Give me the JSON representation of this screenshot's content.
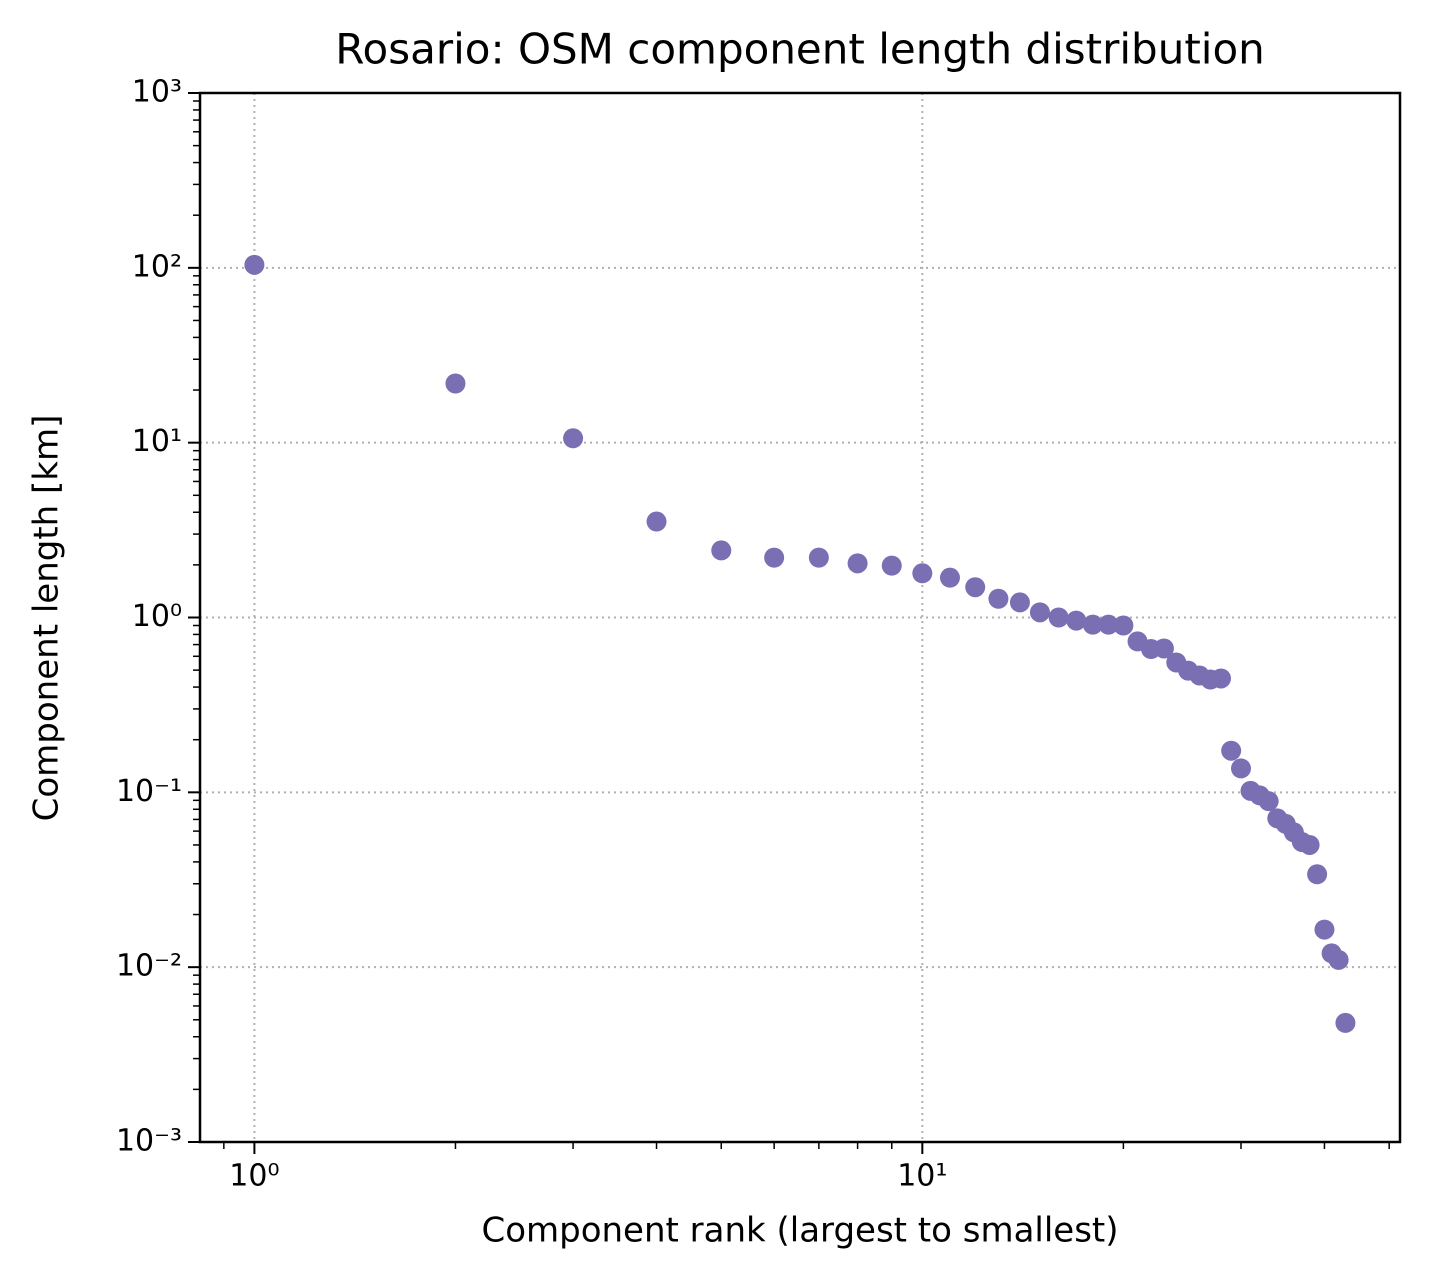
{
  "chart_data": {
    "type": "scatter",
    "title": "Rosario: OSM component length distribution",
    "x_label": "Component rank (largest to smallest)",
    "y_label": "Component length [km]",
    "x_scale": "log",
    "y_scale": "log",
    "grid": true,
    "series": [
      {
        "color": "#7b6fb4",
        "x": [
          1,
          2,
          3,
          4,
          5,
          6,
          7,
          8,
          9,
          10,
          11,
          12,
          13,
          14,
          15,
          16,
          17,
          18,
          19,
          20,
          21,
          22,
          23,
          24,
          25,
          26,
          27,
          28,
          29,
          30,
          31,
          32,
          33,
          34,
          35,
          36,
          37,
          38,
          39,
          40,
          41,
          42,
          43
        ],
        "values": [
          104,
          21.8,
          10.6,
          3.54,
          2.42,
          2.2,
          2.2,
          2.04,
          1.98,
          1.79,
          1.69,
          1.49,
          1.28,
          1.22,
          1.07,
          1.0,
          0.96,
          0.91,
          0.91,
          0.9,
          0.73,
          0.66,
          0.665,
          0.553,
          0.497,
          0.466,
          0.442,
          0.448,
          0.173,
          0.137,
          0.102,
          0.096,
          0.089,
          0.071,
          0.066,
          0.059,
          0.052,
          0.05,
          0.034,
          0.0164,
          0.012,
          0.011,
          0.0048
        ]
      }
    ],
    "xlim": [
      0.829,
      51.9
    ],
    "ylim": [
      0.001,
      1000
    ],
    "xticks": [
      {
        "value": 1,
        "label": "10⁰"
      },
      {
        "value": 10,
        "label": "10¹"
      }
    ],
    "yticks": [
      {
        "value": 0.001,
        "label": "10⁻³"
      },
      {
        "value": 0.01,
        "label": "10⁻²"
      },
      {
        "value": 0.1,
        "label": "10⁻¹"
      },
      {
        "value": 1,
        "label": "10⁰"
      },
      {
        "value": 10,
        "label": "10¹"
      },
      {
        "value": 100,
        "label": "10²"
      },
      {
        "value": 1000,
        "label": "10³"
      }
    ]
  }
}
